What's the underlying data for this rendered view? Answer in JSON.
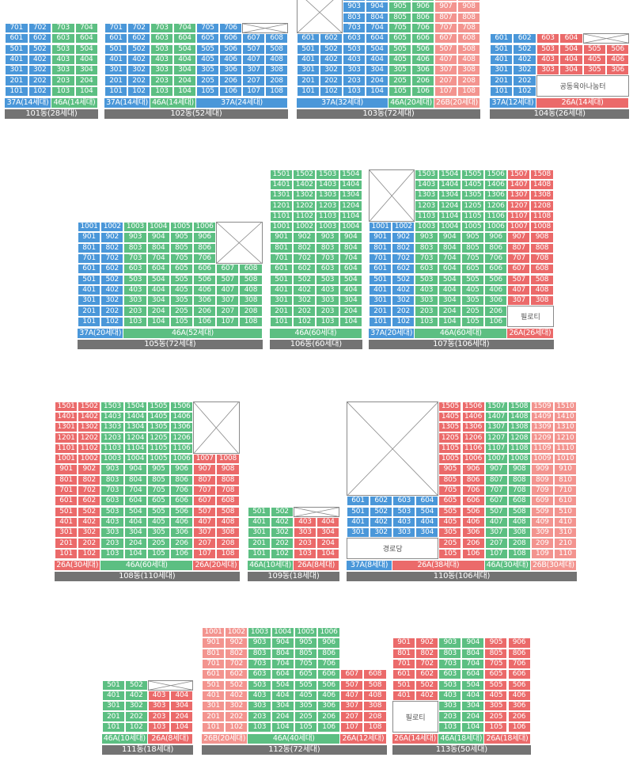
{
  "colors": {
    "blue": "#4a97d9",
    "green": "#5cbf82",
    "red": "#eb6a6a",
    "pink": "#f3948f",
    "bar": "#737373"
  },
  "buildings": [
    {
      "name": "101동(28세대)",
      "floors": 7,
      "units": 4,
      "cells": {
        "blue": [
          1,
          2
        ],
        "green": [
          3,
          4
        ]
      },
      "segments": [
        {
          "label": "37A(14세대)",
          "color": "blue",
          "cols": 2
        },
        {
          "label": "46A(14세대)",
          "color": "green",
          "cols": 2
        }
      ]
    },
    {
      "name": "102동(52세대)",
      "floors": 7,
      "units": 8,
      "cells": {
        "blue": [
          1,
          2,
          7,
          8
        ],
        "green": [
          3,
          4
        ],
        "blue2": [
          5,
          6
        ]
      },
      "missing": [
        {
          "floors": [
            7
          ],
          "units": [
            7,
            8
          ]
        }
      ],
      "segments": [
        {
          "label": "37A(14세대)",
          "color": "blue",
          "cols": 2
        },
        {
          "label": "46A(14세대)",
          "color": "green",
          "cols": 2
        },
        {
          "label": "37A(24세대)",
          "color": "blue",
          "cols": 4
        }
      ]
    },
    {
      "name": "103동(72세대)",
      "floors": 10,
      "units": 8,
      "cells": {
        "blue": [
          1,
          2,
          3,
          4
        ],
        "green": [
          5,
          6
        ],
        "pink": [
          7,
          8
        ]
      },
      "missing": [
        {
          "floors": [
            7,
            8,
            9,
            10
          ],
          "units": [
            1,
            2
          ]
        }
      ],
      "segments": [
        {
          "label": "37A(32세대)",
          "color": "blue",
          "cols": 4
        },
        {
          "label": "46A(20세대)",
          "color": "green",
          "cols": 2
        },
        {
          "label": "26B(20세대)",
          "color": "pink",
          "cols": 2
        }
      ]
    },
    {
      "name": "104동(26세대)",
      "floors": 6,
      "units": 6,
      "cells": {
        "blue": [
          1,
          2
        ],
        "red": [
          3,
          4,
          5,
          6
        ]
      },
      "missing": [
        {
          "floors": [
            6
          ],
          "units": [
            5,
            6
          ]
        }
      ],
      "note_label": "공동육아나눔터",
      "segments": [
        {
          "label": "37A(12세대)",
          "color": "blue",
          "cols": 2
        },
        {
          "label": "26A(14세대)",
          "color": "red",
          "cols": 4
        }
      ]
    },
    {
      "name": "105동(72세대)",
      "floors": 10,
      "units": 8,
      "cells": {
        "blue": [
          1,
          2
        ],
        "green": [
          3,
          4,
          5,
          6,
          7,
          8
        ]
      },
      "segments": [
        {
          "label": "37A(20세대)",
          "color": "blue",
          "cols": 2
        },
        {
          "label": "46A(52세대)",
          "color": "green",
          "cols": 6
        }
      ]
    },
    {
      "name": "106동(60세대)",
      "floors": 15,
      "units": 4,
      "cells": {
        "green": [
          1,
          2,
          3,
          4
        ]
      },
      "segments": [
        {
          "label": "46A(60세대)",
          "color": "green",
          "cols": 4
        }
      ]
    },
    {
      "name": "107동(106세대)",
      "floors": 15,
      "units": 8,
      "cells": {
        "blue": [
          1,
          2
        ],
        "green": [
          3,
          4,
          5,
          6
        ],
        "red": [
          7,
          8
        ]
      },
      "note_label": "필로티",
      "segments": [
        {
          "label": "37A(20세대)",
          "color": "blue",
          "cols": 2
        },
        {
          "label": "46A(60세대)",
          "color": "green",
          "cols": 4
        },
        {
          "label": "26A(26세대)",
          "color": "red",
          "cols": 2
        }
      ]
    },
    {
      "name": "108동(110세대)",
      "floors": 15,
      "units": 8,
      "cells": {
        "red": [
          1,
          2,
          7,
          8
        ],
        "green": [
          3,
          4,
          5,
          6
        ]
      },
      "segments": [
        {
          "label": "26A(30세대)",
          "color": "red",
          "cols": 2
        },
        {
          "label": "46A(60세대)",
          "color": "green",
          "cols": 4
        },
        {
          "label": "26A(20세대)",
          "color": "red",
          "cols": 2
        }
      ]
    },
    {
      "name": "109동(18세대)",
      "floors": 5,
      "units": 4,
      "cells": {
        "green": [
          1,
          2
        ],
        "red": [
          3,
          4
        ]
      },
      "segments": [
        {
          "label": "46A(10세대)",
          "color": "green",
          "cols": 2
        },
        {
          "label": "26A(8세대)",
          "color": "red",
          "cols": 2
        }
      ]
    },
    {
      "name": "110동(106세대)",
      "floors": 15,
      "units": 10,
      "cells": {
        "blue": [
          1,
          2,
          3,
          4
        ],
        "red": [
          5,
          6,
          7,
          8
        ],
        "green": [
          7,
          8
        ],
        "pink": [
          9,
          10
        ]
      },
      "note_label": "경로당",
      "segments": [
        {
          "label": "37A(8세대)",
          "color": "blue",
          "cols": 2
        },
        {
          "label": "26A(38세대)",
          "color": "red",
          "cols": 4
        },
        {
          "label": "46A(30세대)",
          "color": "green",
          "cols": 2
        },
        {
          "label": "26B(30세대)",
          "color": "pink",
          "cols": 2
        }
      ]
    },
    {
      "name": "111동(18세대)",
      "floors": 5,
      "units": 4,
      "cells": {
        "green": [
          1,
          2
        ],
        "red": [
          3,
          4
        ]
      },
      "segments": [
        {
          "label": "46A(10세대)",
          "color": "green",
          "cols": 2
        },
        {
          "label": "26A(8세대)",
          "color": "red",
          "cols": 2
        }
      ]
    },
    {
      "name": "112동(72세대)",
      "floors": 10,
      "units": 8,
      "cells": {
        "pink": [
          1,
          2
        ],
        "green": [
          3,
          4,
          5,
          6
        ],
        "red": [
          7,
          8
        ]
      },
      "segments": [
        {
          "label": "26B(20세대)",
          "color": "pink",
          "cols": 2
        },
        {
          "label": "46A(40세대)",
          "color": "green",
          "cols": 4
        },
        {
          "label": "26A(12세대)",
          "color": "red",
          "cols": 2
        }
      ]
    },
    {
      "name": "113동(50세대)",
      "floors": 9,
      "units": 6,
      "cells": {
        "red": [
          1,
          2,
          5,
          6
        ],
        "green": [
          3,
          4
        ]
      },
      "note_label": "필로티",
      "segments": [
        {
          "label": "26A(14세대)",
          "color": "red",
          "cols": 2
        },
        {
          "label": "46A(18세대)",
          "color": "green",
          "cols": 2
        },
        {
          "label": "26A(18세대)",
          "color": "red",
          "cols": 2
        }
      ]
    }
  ]
}
